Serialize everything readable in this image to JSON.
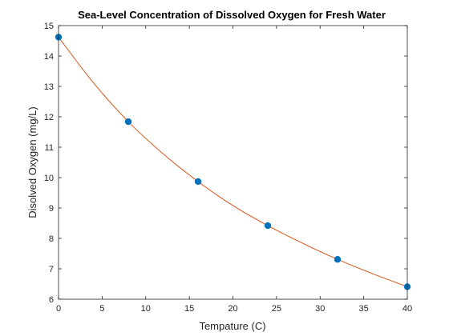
{
  "chart_data": {
    "type": "scatter",
    "title": "Sea-Level Concentration of Dissolved Oxygen for Fresh Water",
    "xlabel": "Tempature (C)",
    "ylabel": "Disolved Oxygen (mg/L)",
    "xlim": [
      0,
      40
    ],
    "ylim": [
      6,
      15
    ],
    "xticks": [
      0,
      5,
      10,
      15,
      20,
      25,
      30,
      35,
      40
    ],
    "yticks": [
      6,
      7,
      8,
      9,
      10,
      11,
      12,
      13,
      14,
      15
    ],
    "grid": false,
    "legend": "none",
    "series": [
      {
        "kind": "markers",
        "color": "#0072BD",
        "x": [
          0,
          8,
          16,
          24,
          32,
          40
        ],
        "y": [
          14.62,
          11.84,
          9.87,
          8.42,
          7.31,
          6.41
        ]
      },
      {
        "kind": "fitted-curve",
        "color": "#D95319",
        "x": [
          0,
          4,
          8,
          12,
          16,
          20,
          24,
          28,
          32,
          36,
          40
        ],
        "y": [
          14.62,
          13.12,
          11.84,
          10.78,
          9.87,
          9.08,
          8.42,
          7.84,
          7.31,
          6.84,
          6.41
        ]
      }
    ]
  }
}
